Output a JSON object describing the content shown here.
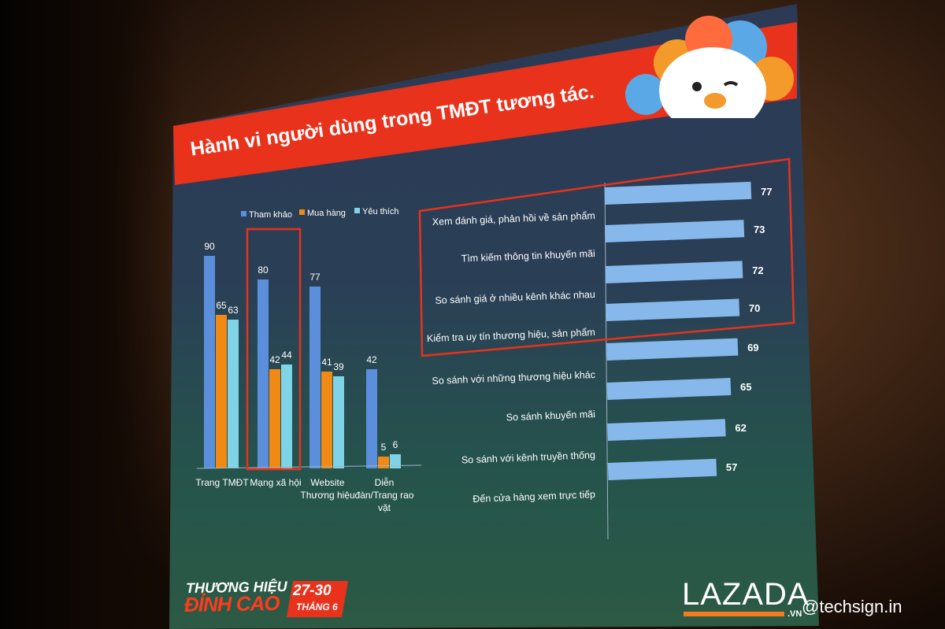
{
  "slide": {
    "title_part1": "Hành vi người dùng trong TMĐT tương tác.",
    "footer_event_line1": "THƯƠNG HIỆU",
    "footer_event_line2": "ĐỈNH CAO",
    "footer_date": "27-30",
    "footer_month": "THÁNG 6",
    "brand": "LAZADA",
    "brand_suffix": ".VN",
    "watermark": "@techsign.in"
  },
  "colors": {
    "slide_header": "#e8321c",
    "series_tham_khao": "#5b8fdc",
    "series_mua_hang": "#f08a14",
    "series_yeu_thich": "#7fd3e6",
    "hbar": "#86b8ec",
    "highlight_box": "#e8321c"
  },
  "chart_data": [
    {
      "type": "bar",
      "legend_position": "top",
      "categories": [
        "Trang TMĐT",
        "Mạng xã hội",
        "Website Thương hiệu",
        "Diễn đàn/Trang rao vặt"
      ],
      "series": [
        {
          "name": "Tham khảo",
          "values": [
            90,
            80,
            77,
            42
          ]
        },
        {
          "name": "Mua hàng",
          "values": [
            65,
            42,
            41,
            5
          ]
        },
        {
          "name": "Yêu thích",
          "values": [
            63,
            44,
            39,
            6
          ]
        }
      ],
      "highlighted_category": "Mạng xã hội",
      "ylim": [
        0,
        100
      ]
    },
    {
      "type": "bar",
      "orientation": "horizontal",
      "categories": [
        "Xem đánh giá, phản hồi về sản phẩm",
        "Tìm kiếm thông tin khuyến mãi",
        "So sánh giá ở nhiều kênh khác nhau",
        "Kiểm tra uy tín thương hiệu, sản phẩm",
        "So sánh với những thương hiệu khác",
        "So sánh khuyến mãi",
        "So sánh với kênh truyền thống",
        "Đến cửa hàng xem trực tiếp"
      ],
      "values": [
        77,
        73,
        72,
        70,
        69,
        65,
        62,
        57
      ],
      "highlighted_count": 4,
      "xlim": [
        0,
        77
      ]
    }
  ]
}
